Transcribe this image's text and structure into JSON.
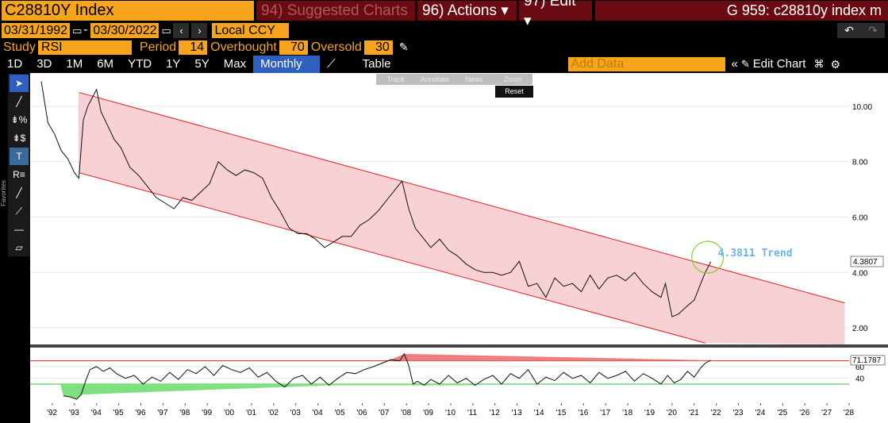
{
  "header": {
    "ticker": "C28810Y Index",
    "menu_suggested": "94) Suggested Charts",
    "menu_actions": "96) Actions ▾",
    "menu_edit": "97) Edit ▾",
    "right_title": "G 959: c28810y index m"
  },
  "dates": {
    "start": "03/31/1992",
    "end": "03/30/2022",
    "currency": "Local CCY"
  },
  "study": {
    "label": "Study",
    "value": "RSI",
    "period_label": "Period",
    "period": "14",
    "overbought_label": "Overbought",
    "overbought": "70",
    "oversold_label": "Oversold",
    "oversold": "30"
  },
  "tabs": [
    "1D",
    "3D",
    "1M",
    "6M",
    "YTD",
    "1Y",
    "5Y",
    "Max"
  ],
  "frequency": "Monthly ▼",
  "table_label": "Table",
  "add_data_placeholder": "Add Data",
  "edit_chart_label": "Edit Chart",
  "annotate_menu": [
    "Track",
    "Annotate",
    "News",
    "Zoom"
  ],
  "reset_label": "Reset",
  "favorites_label": "Favorites",
  "chart_data": [
    {
      "type": "line",
      "title": "",
      "annotation": "4.3811 Trend",
      "last_value_label": "4.3807",
      "y_ticks": [
        "10.00",
        "8.00",
        "6.00",
        "4.00",
        "2.00"
      ],
      "ylim": [
        1.4,
        11.2
      ],
      "x_ticks": [
        "'92",
        "'93",
        "'94",
        "'95",
        "'96",
        "'97",
        "'98",
        "'99",
        "'00",
        "'01",
        "'02",
        "'03",
        "'04",
        "'05",
        "'06",
        "'07",
        "'08",
        "'09",
        "'10",
        "'11",
        "'12",
        "'13",
        "'14",
        "'15",
        "'16",
        "'17",
        "'18",
        "'19",
        "'20",
        "'21",
        "'22",
        "'23",
        "'24",
        "'25",
        "'26",
        "'27",
        "'28"
      ],
      "xlim": [
        1992.0,
        2028.5
      ],
      "series": [
        {
          "x": [
            1992.0,
            1992.3,
            1992.6,
            1992.9,
            1993.2,
            1993.5,
            1993.7,
            1993.9,
            1994.1,
            1994.3,
            1994.5,
            1994.7,
            1995.0,
            1995.3,
            1995.6,
            1996.0,
            1996.4,
            1996.8,
            1997.2,
            1997.6,
            1998.0,
            1998.4,
            1998.8,
            1999.2,
            1999.6,
            2000.0,
            2000.4,
            2000.8,
            2001.2,
            2001.6,
            2002.0,
            2002.4,
            2002.8,
            2003.2,
            2003.6,
            2004.0,
            2004.4,
            2004.8,
            2005.2,
            2005.6,
            2006.0,
            2006.4,
            2006.8,
            2007.2,
            2007.6,
            2008.0,
            2008.3,
            2008.6,
            2008.9,
            2009.2,
            2009.6,
            2010.0,
            2010.4,
            2010.8,
            2011.2,
            2011.6,
            2012.0,
            2012.4,
            2012.8,
            2013.2,
            2013.6,
            2014.0,
            2014.4,
            2014.8,
            2015.2,
            2015.6,
            2016.0,
            2016.4,
            2016.8,
            2017.2,
            2017.6,
            2018.0,
            2018.4,
            2018.8,
            2019.2,
            2019.6,
            2020.0,
            2020.2,
            2020.5,
            2020.8,
            2021.2,
            2021.5,
            2021.8,
            2022.0,
            2022.25
          ],
          "values": [
            10.9,
            9.4,
            9.0,
            8.4,
            8.1,
            7.6,
            7.4,
            9.5,
            10.0,
            10.3,
            10.6,
            9.8,
            9.3,
            8.8,
            8.5,
            7.8,
            7.5,
            7.1,
            6.7,
            6.5,
            6.3,
            6.7,
            6.6,
            6.9,
            7.2,
            8.0,
            7.7,
            7.5,
            7.7,
            7.6,
            7.4,
            6.7,
            6.2,
            5.6,
            5.4,
            5.4,
            5.2,
            4.9,
            5.1,
            5.3,
            5.3,
            5.7,
            5.9,
            6.2,
            6.6,
            7.0,
            7.3,
            6.3,
            5.6,
            5.3,
            4.9,
            5.2,
            4.8,
            4.6,
            4.3,
            4.1,
            4.0,
            4.0,
            3.9,
            4.0,
            4.4,
            3.5,
            3.6,
            3.1,
            3.8,
            3.5,
            3.6,
            3.3,
            3.9,
            3.4,
            3.8,
            3.9,
            3.7,
            4.0,
            3.6,
            3.3,
            3.1,
            3.6,
            2.4,
            2.5,
            2.8,
            3.0,
            3.6,
            4.0,
            4.38
          ]
        }
      ],
      "channel": {
        "upper": [
          [
            1993.7,
            10.5
          ],
          [
            2028.3,
            2.9
          ]
        ],
        "lower": [
          [
            1993.7,
            7.6
          ],
          [
            2022.0,
            1.45
          ]
        ]
      }
    },
    {
      "type": "line",
      "title": "",
      "indicator": "RSI",
      "last_value_label": "71.1787",
      "y_ticks": [
        "60",
        "40"
      ],
      "ylim": [
        0,
        90
      ],
      "overbought": 70,
      "oversold": 30,
      "series": [
        {
          "x": [
            1993.0,
            1993.3,
            1993.6,
            1993.8,
            1994.0,
            1994.2,
            1994.5,
            1994.8,
            1995.1,
            1995.4,
            1995.8,
            1996.2,
            1996.6,
            1997.0,
            1997.4,
            1997.8,
            1998.2,
            1998.6,
            1999.0,
            1999.4,
            1999.8,
            2000.2,
            2000.6,
            2001.0,
            2001.4,
            2001.8,
            2002.2,
            2002.6,
            2003.0,
            2003.4,
            2003.8,
            2004.2,
            2004.6,
            2005.0,
            2005.4,
            2005.8,
            2006.2,
            2006.6,
            2007.0,
            2007.4,
            2007.8,
            2008.2,
            2008.4,
            2008.6,
            2008.8,
            2009.0,
            2009.3,
            2009.6,
            2010.0,
            2010.4,
            2010.8,
            2011.2,
            2011.6,
            2012.0,
            2012.4,
            2012.8,
            2013.2,
            2013.6,
            2014.0,
            2014.4,
            2014.8,
            2015.2,
            2015.6,
            2016.0,
            2016.4,
            2016.8,
            2017.2,
            2017.6,
            2018.0,
            2018.4,
            2018.8,
            2019.2,
            2019.6,
            2020.0,
            2020.3,
            2020.6,
            2020.9,
            2021.2,
            2021.5,
            2021.8,
            2022.0,
            2022.25
          ],
          "values": [
            10,
            8,
            4,
            12,
            35,
            55,
            60,
            52,
            58,
            48,
            40,
            45,
            30,
            42,
            35,
            50,
            38,
            55,
            48,
            60,
            45,
            62,
            55,
            50,
            58,
            42,
            50,
            35,
            25,
            40,
            45,
            30,
            42,
            28,
            40,
            50,
            48,
            55,
            60,
            66,
            72,
            70,
            82,
            62,
            30,
            35,
            28,
            38,
            30,
            45,
            32,
            40,
            28,
            38,
            45,
            30,
            48,
            40,
            55,
            30,
            42,
            36,
            50,
            40,
            45,
            32,
            50,
            40,
            45,
            52,
            35,
            48,
            40,
            30,
            45,
            32,
            38,
            52,
            42,
            58,
            66,
            71
          ]
        }
      ]
    }
  ]
}
